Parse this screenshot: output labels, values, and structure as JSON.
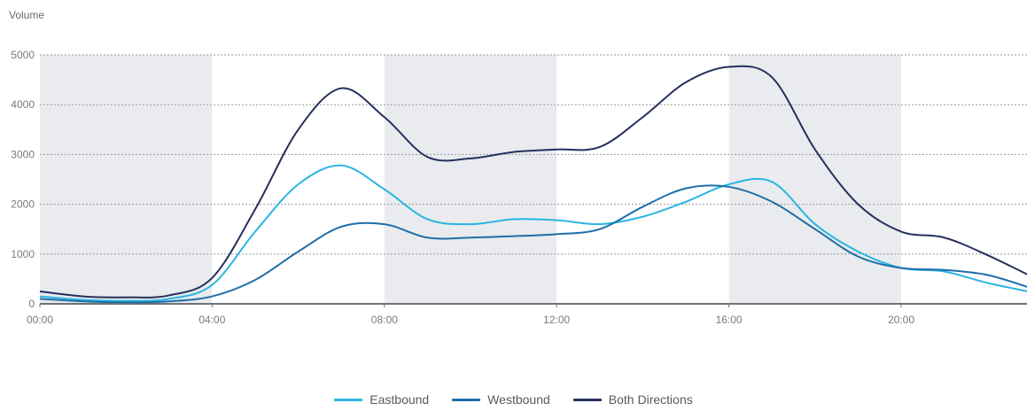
{
  "chart_data": {
    "type": "line",
    "ylabel": "Volume",
    "xlabel": "",
    "title": "",
    "x_ticks": [
      "00:00",
      "04:00",
      "08:00",
      "12:00",
      "16:00",
      "20:00"
    ],
    "y_ticks": [
      0,
      1000,
      2000,
      3000,
      4000,
      5000
    ],
    "xlim": [
      0,
      23
    ],
    "ylim": [
      0,
      5000
    ],
    "grid": "horizontal-dotted",
    "shaded_bands": [
      [
        0,
        4
      ],
      [
        8,
        12
      ],
      [
        16,
        20
      ]
    ],
    "legend_position": "bottom-center",
    "x": [
      0,
      1,
      2,
      3,
      4,
      5,
      6,
      7,
      8,
      9,
      10,
      11,
      12,
      13,
      14,
      15,
      16,
      17,
      18,
      19,
      20,
      21,
      22,
      23
    ],
    "series": [
      {
        "name": "Eastbound",
        "color": "#2bb5e3",
        "values": [
          150,
          80,
          60,
          100,
          380,
          1450,
          2400,
          2780,
          2300,
          1700,
          1600,
          1700,
          1680,
          1600,
          1750,
          2050,
          2400,
          2450,
          1600,
          1050,
          720,
          650,
          420,
          240
        ]
      },
      {
        "name": "Westbound",
        "color": "#1f6ea8",
        "values": [
          100,
          50,
          30,
          50,
          150,
          480,
          1050,
          1550,
          1600,
          1330,
          1330,
          1360,
          1400,
          1500,
          1950,
          2320,
          2350,
          2050,
          1500,
          950,
          720,
          680,
          580,
          320
        ]
      },
      {
        "name": "Both Directions",
        "color": "#25305e",
        "values": [
          250,
          150,
          130,
          170,
          520,
          1900,
          3500,
          4330,
          3750,
          2950,
          2920,
          3050,
          3100,
          3150,
          3750,
          4450,
          4760,
          4550,
          3100,
          2000,
          1450,
          1330,
          980,
          560
        ]
      }
    ]
  }
}
